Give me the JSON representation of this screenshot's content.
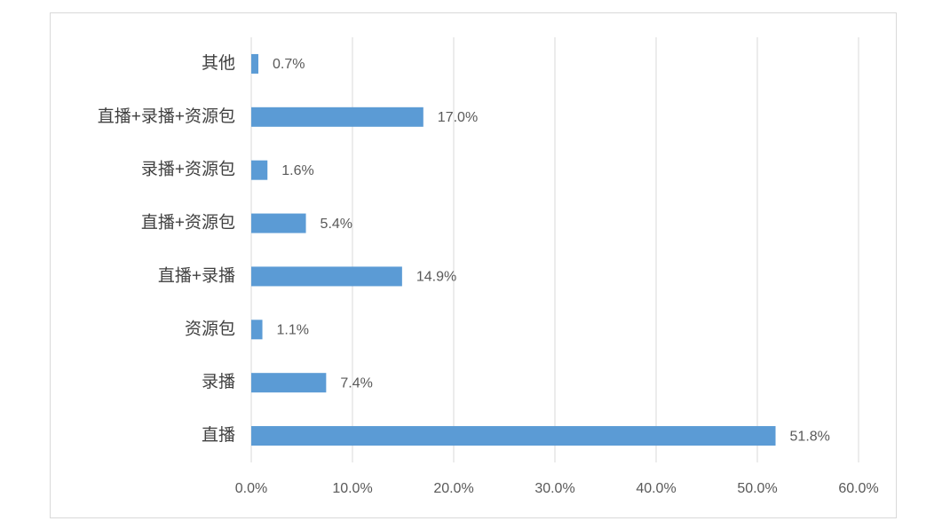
{
  "chart_data": {
    "type": "bar",
    "orientation": "horizontal",
    "categories": [
      "其他",
      "直播+录播+资源包",
      "录播+资源包",
      "直播+资源包",
      "直播+录播",
      "资源包",
      "录播",
      "直播"
    ],
    "values": [
      0.7,
      17.0,
      1.6,
      5.4,
      14.9,
      1.1,
      7.4,
      51.8
    ],
    "value_labels": [
      "0.7%",
      "17.0%",
      "1.6%",
      "5.4%",
      "14.9%",
      "1.1%",
      "7.4%",
      "51.8%"
    ],
    "color": "#5b9bd5",
    "xlim": [
      0,
      60
    ],
    "xticks": [
      {
        "value": 0,
        "label": "0.0%"
      },
      {
        "value": 10,
        "label": "10.0%"
      },
      {
        "value": 20,
        "label": "20.0%"
      },
      {
        "value": 30,
        "label": "30.0%"
      },
      {
        "value": 40,
        "label": "40.0%"
      },
      {
        "value": 50,
        "label": "50.0%"
      },
      {
        "value": 60,
        "label": "60.0%"
      }
    ],
    "grid": true
  }
}
